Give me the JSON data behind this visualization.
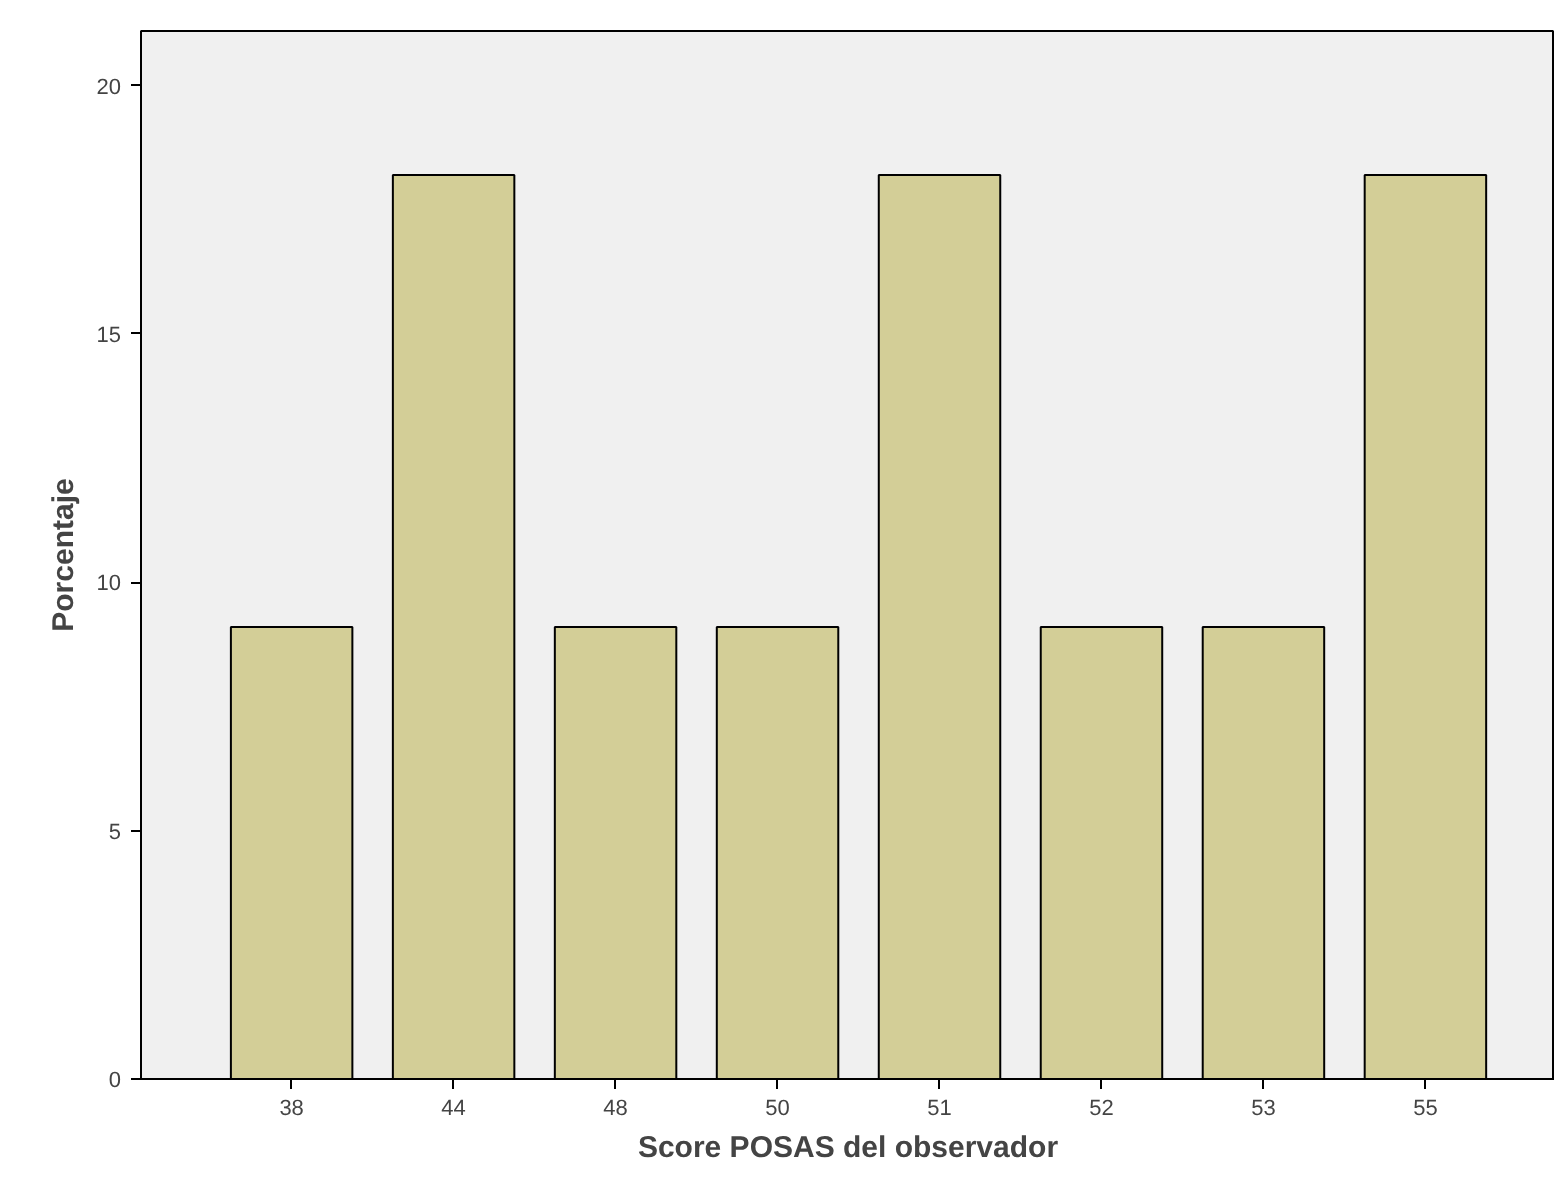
{
  "chart_data": {
    "type": "bar",
    "xlabel": "Score POSAS del observador",
    "ylabel": "Porcentaje",
    "categories": [
      "38",
      "44",
      "48",
      "50",
      "51",
      "52",
      "53",
      "55"
    ],
    "values": [
      9.1,
      18.2,
      9.1,
      9.1,
      18.2,
      9.1,
      9.1,
      18.2
    ],
    "color": "#d3ce97",
    "ylim": [
      0,
      21.1
    ],
    "yticks": [
      0,
      5,
      10,
      15,
      20
    ],
    "grid": false
  }
}
